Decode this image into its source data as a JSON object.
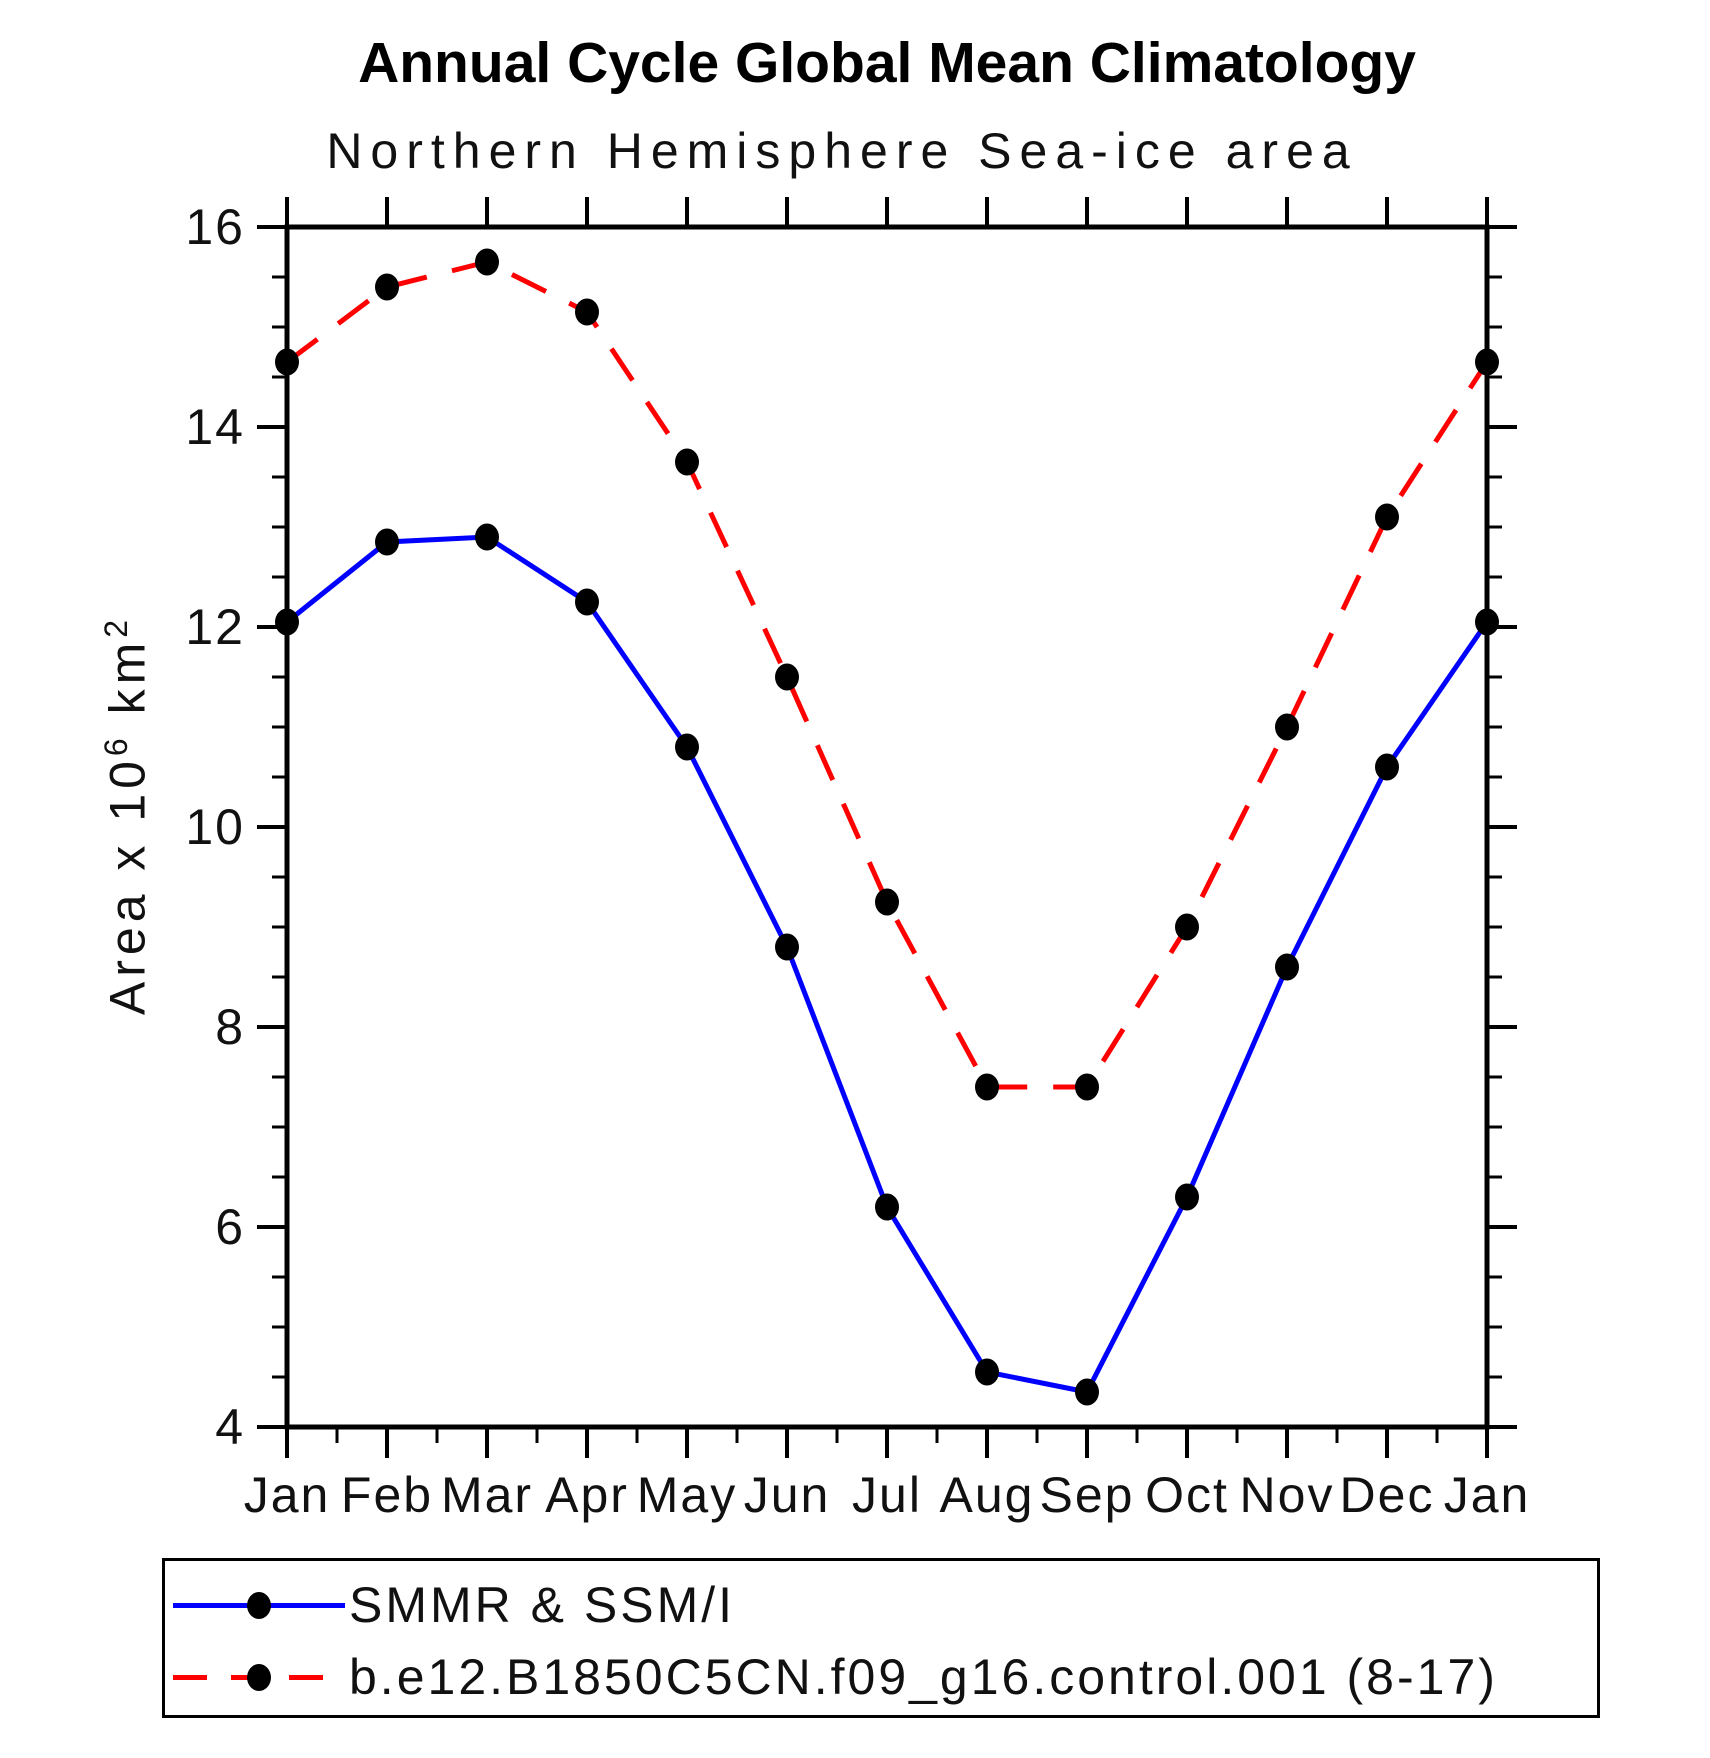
{
  "title": "Annual Cycle Global Mean Climatology",
  "subtitle": "Northern Hemisphere Sea-ice area",
  "y_axis": {
    "label_prefix": "Area x 10",
    "label_exp": "6",
    "label_unit": " km",
    "label_unit_exp": "2",
    "min": 4,
    "max": 16,
    "major_step": 2,
    "minor_step": 0.5,
    "tick_labels": [
      "16",
      "14",
      "12",
      "10",
      "8",
      "6",
      "4"
    ]
  },
  "x_axis": {
    "labels": [
      "Jan",
      "Feb",
      "Mar",
      "Apr",
      "May",
      "Jun",
      "Jul",
      "Aug",
      "Sep",
      "Oct",
      "Nov",
      "Dec",
      "Jan"
    ]
  },
  "legend": {
    "items": [
      {
        "label": "SMMR & SSM/I",
        "color": "#0000ff",
        "line_style": "solid",
        "marker": "filled-circle"
      },
      {
        "label": "b.e12.B1850C5CN.f09_g16.control.001 (8-17)",
        "color": "#ff0000",
        "line_style": "dashed",
        "marker": "filled-circle"
      }
    ]
  },
  "chart_data": {
    "type": "line",
    "title": "Annual Cycle Global Mean Climatology",
    "subtitle": "Northern Hemisphere Sea-ice area",
    "ylabel": "Area x 10^6 km^2",
    "xlabel": "",
    "categories": [
      "Jan",
      "Feb",
      "Mar",
      "Apr",
      "May",
      "Jun",
      "Jul",
      "Aug",
      "Sep",
      "Oct",
      "Nov",
      "Dec",
      "Jan"
    ],
    "ylim": [
      4,
      16
    ],
    "y_major_step": 2,
    "y_minor_step": 0.5,
    "grid": false,
    "legend_position": "bottom",
    "marker_color": "#000000",
    "series": [
      {
        "name": "SMMR & SSM/I",
        "color": "#0000ff",
        "line_style": "solid",
        "values": [
          12.05,
          12.85,
          12.9,
          12.25,
          10.8,
          8.8,
          6.2,
          4.55,
          4.35,
          6.3,
          8.6,
          10.6,
          12.05
        ]
      },
      {
        "name": "b.e12.B1850C5CN.f09_g16.control.001 (8-17)",
        "color": "#ff0000",
        "line_style": "dashed",
        "values": [
          14.65,
          15.4,
          15.65,
          15.15,
          13.65,
          11.5,
          9.25,
          7.4,
          7.4,
          9.0,
          11.0,
          13.1,
          14.65
        ]
      }
    ]
  }
}
